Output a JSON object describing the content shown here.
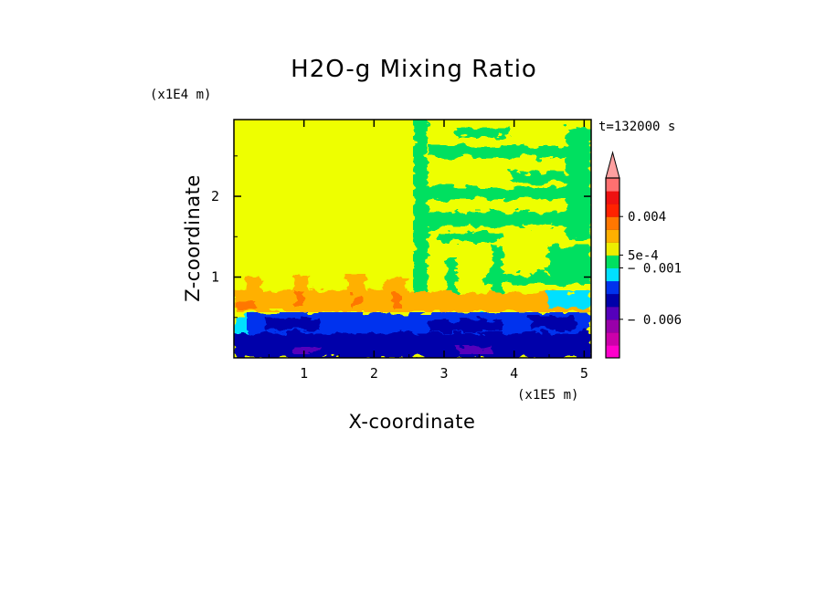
{
  "chart_data": {
    "type": "heatmap",
    "title": "H2O-g Mixing Ratio",
    "xlabel": "X-coordinate",
    "ylabel": "Z-coordinate",
    "x_unit": "(x1E5 m)",
    "y_unit": "(x1E4 m)",
    "time_label": "t=132000 s",
    "xlim": [
      0,
      5.1
    ],
    "ylim": [
      0,
      2.95
    ],
    "x_ticks": [
      "1",
      "2",
      "3",
      "4",
      "5"
    ],
    "x_tick_values": [
      1,
      2,
      3,
      4,
      5
    ],
    "y_ticks": [
      "1",
      "2"
    ],
    "y_tick_values": [
      1,
      2
    ],
    "colorbar": {
      "colors": [
        "#ff00cc",
        "#cc00aa",
        "#9900aa",
        "#5500bb",
        "#0000aa",
        "#0033ee",
        "#00e0ff",
        "#00e060",
        "#eeee00",
        "#ffb000",
        "#ff7700",
        "#ff2200",
        "#ee1111",
        "#ff7070",
        "#ffa0a0"
      ],
      "labels": [
        {
          "text": "0.004",
          "value": 0.004
        },
        {
          "text": "5e-4",
          "value": 0.0005
        },
        {
          "text": "− 0.001",
          "value": -0.001
        },
        {
          "text": "− 0.006",
          "value": -0.006
        }
      ],
      "extend": "max"
    },
    "regions": {
      "upper_left_field": "yellow",
      "upper_right_field": "yellow with green filaments",
      "lower_layer": "blue and dark blue with cyan",
      "transition_layer": "orange plumes"
    }
  }
}
